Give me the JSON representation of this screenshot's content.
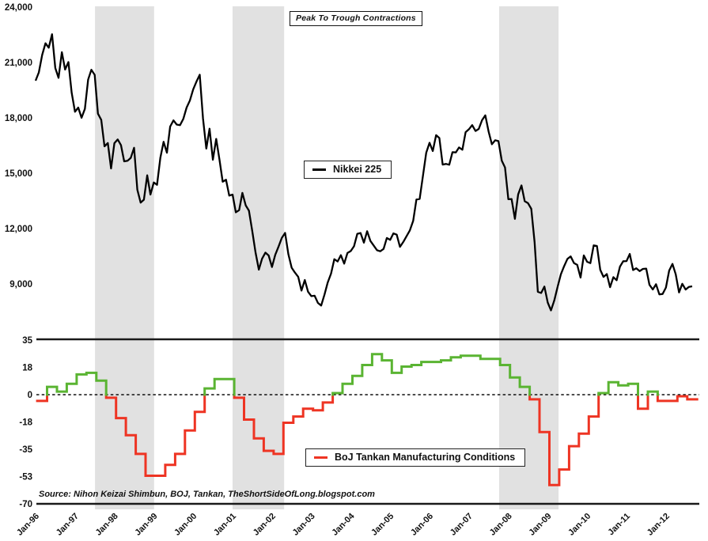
{
  "title_box": {
    "label": "Peak To Trough Contractions"
  },
  "legend_nikkei": {
    "label": "Nikkei 225"
  },
  "legend_tankan": {
    "label": "BoJ Tankan Manufacturing Conditions"
  },
  "source_note": "Source: Nihon Keizai Shimbun, BOJ, Tankan, TheShortSideOfLong.blogspot.com",
  "colors": {
    "nikkei_line": "#000000",
    "tankan_positive": "#5ab432",
    "tankan_negative": "#ee3423",
    "contraction_band": "#e1e1e1",
    "axis_line": "#1a1a1a",
    "zero_dotted_line": "#111111"
  },
  "x_axis": {
    "tick_labels": [
      "Jan-96",
      "Jan-97",
      "Jan-98",
      "Jan-99",
      "Jan-00",
      "Jan-01",
      "Jan-02",
      "Jan-03",
      "Jan-04",
      "Jan-05",
      "Jan-06",
      "Jan-07",
      "Jan-08",
      "Jan-09",
      "Jan-10",
      "Jan-11",
      "Jan-12"
    ]
  },
  "contraction_bands": {
    "label": "Peak To Trough Contractions",
    "intervals": [
      {
        "from": "Jul-1997",
        "to": "Jan-1999",
        "from_month": 18.1,
        "to_month": 36.1
      },
      {
        "from": "Jan-2001",
        "to": "Apr-2002",
        "from_month": 60.0,
        "to_month": 75.7
      },
      {
        "from": "Oct-2007",
        "to": "Apr-2009",
        "from_month": 141.2,
        "to_month": 159.3
      }
    ]
  },
  "chart_data": [
    {
      "type": "line",
      "name": "Nikkei 225",
      "panel": "top",
      "x_start": "Jan-1996",
      "frequency": "monthly",
      "ylim": [
        6000,
        24000
      ],
      "y_tick_labels": [
        "24,000",
        "21,000",
        "18,000",
        "15,000",
        "12,000",
        "9,000"
      ],
      "y_tick_values": [
        24000,
        21000,
        18000,
        15000,
        12000,
        9000
      ],
      "grid": false,
      "values": [
        20013,
        20465,
        21407,
        22041,
        21800,
        22531,
        20699,
        20167,
        21556,
        20617,
        21020,
        19361,
        18330,
        18557,
        18003,
        18485,
        20069,
        20605,
        20331,
        18229,
        17888,
        16459,
        16636,
        15259,
        16628,
        16832,
        16527,
        15641,
        15671,
        15830,
        16379,
        14108,
        13406,
        13565,
        14884,
        13842,
        14499,
        14368,
        15837,
        16702,
        16112,
        17530,
        17862,
        17634,
        17605,
        17942,
        18559,
        18934,
        19540,
        19959,
        20337,
        17974,
        16332,
        17411,
        15727,
        16861,
        15747,
        14540,
        14649,
        13786,
        13844,
        12884,
        12999,
        13934,
        13262,
        12969,
        11861,
        10714,
        9775,
        10366,
        10697,
        10543,
        9919,
        10572,
        11025,
        11492,
        11764,
        10622,
        9878,
        9619,
        9383,
        8640,
        9216,
        8579,
        8339,
        8363,
        7973,
        7831,
        8425,
        9083,
        9563,
        10343,
        10219,
        10559,
        10100,
        10677,
        10784,
        11041,
        11715,
        11762,
        11236,
        11858,
        11326,
        11082,
        10824,
        10771,
        10899,
        11489,
        11387,
        11740,
        11669,
        11009,
        11276,
        11584,
        11900,
        12414,
        13574,
        13606,
        14872,
        16111,
        16649,
        16205,
        17060,
        16906,
        15467,
        15505,
        15457,
        16141,
        16128,
        16399,
        16274,
        17226,
        17383,
        17604,
        17288,
        17400,
        17876,
        18138,
        17249,
        16569,
        16786,
        16738,
        15681,
        15308,
        13592,
        13603,
        12526,
        13850,
        14339,
        13481,
        13377,
        13073,
        11260,
        8577,
        8512,
        8860,
        7994,
        7568,
        8110,
        8828,
        9523,
        9958,
        10357,
        10493,
        10133,
        10035,
        9346,
        10546,
        10198,
        10126,
        11090,
        11057,
        9769,
        9383,
        9537,
        8824,
        9369,
        9202,
        9937,
        10229,
        10237,
        10624,
        9755,
        9850,
        9694,
        9816,
        9833,
        8955,
        8700,
        8988,
        8435,
        8455,
        8803,
        9723,
        10084,
        9521,
        8543,
        9007,
        8695,
        8840,
        8870
      ]
    },
    {
      "type": "step-line",
      "name": "BoJ Tankan Manufacturing Conditions",
      "panel": "bottom",
      "x_start": "Mar-1996",
      "frequency": "quarterly",
      "ylim": [
        -70,
        35
      ],
      "y_tick_labels": [
        "35",
        "18",
        "0",
        "-18",
        "-35",
        "-53",
        "-70"
      ],
      "y_tick_values": [
        35,
        17.5,
        0,
        -17.5,
        -35,
        -52.5,
        -70
      ],
      "zero_line": true,
      "grid": false,
      "values": [
        -4,
        5,
        2,
        7,
        13,
        14,
        9,
        -2,
        -15,
        -26,
        -38,
        -52,
        -52,
        -45,
        -38,
        -23,
        -11,
        4,
        10,
        10,
        -2,
        -16,
        -28,
        -36,
        -38,
        -18,
        -14,
        -9,
        -10,
        -5,
        1,
        7,
        12,
        19,
        26,
        22,
        14,
        18,
        19,
        21,
        21,
        22,
        24,
        25,
        25,
        23,
        23,
        19,
        11,
        5,
        -3,
        -24,
        -58,
        -48,
        -33,
        -25,
        -14,
        1,
        8,
        6,
        7,
        -9,
        2,
        -4,
        -4,
        -1,
        -3
      ]
    }
  ]
}
